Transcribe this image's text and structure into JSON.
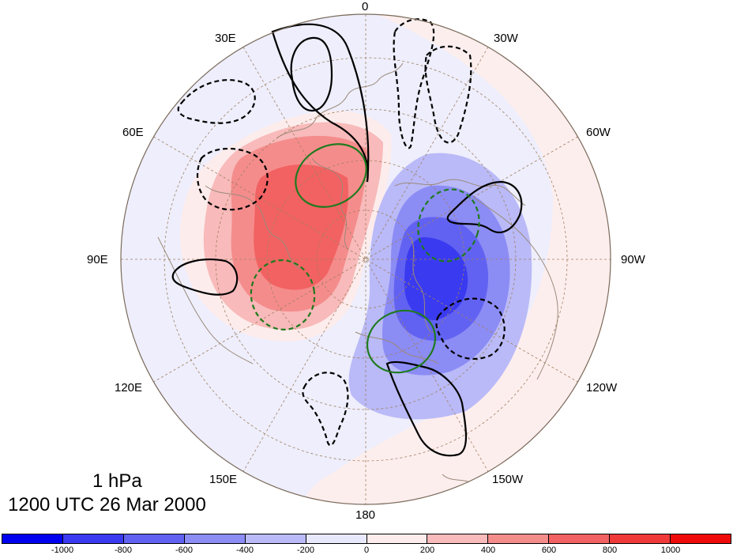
{
  "map": {
    "projection": "north-polar-stereographic",
    "level_label": "1 hPa",
    "time_label": "1200 UTC 26 Mar 2000",
    "longitude_labels": {
      "lon_0": "0",
      "lon_30w": "30W",
      "lon_60w": "60W",
      "lon_90w": "90W",
      "lon_120w": "120W",
      "lon_150w": "150W",
      "lon_180": "180",
      "lon_150e": "150E",
      "lon_120e": "120E",
      "lon_90e": "90E",
      "lon_60e": "60E",
      "lon_30e": "30E"
    },
    "colors": {
      "coastline": "#9b8a7a",
      "graticule": "#a08060",
      "positive_contour": "#000000",
      "negative_contour": "#000000",
      "green_contour": "#1e7a1e",
      "background_positive": "#fdeeee",
      "background_negative": "#eeeefc"
    }
  },
  "colorbar": {
    "colors": [
      "#0000f0",
      "#3a3af0",
      "#6262f2",
      "#8c8cf5",
      "#babaf8",
      "#e8e8fc",
      "#fdecec",
      "#f8baba",
      "#f58c8c",
      "#f26262",
      "#f03a3a",
      "#f00a0a"
    ],
    "tick_labels": [
      "-1000",
      "-800",
      "-600",
      "-400",
      "-200",
      "0",
      "200",
      "400",
      "600",
      "800",
      "1000"
    ]
  }
}
